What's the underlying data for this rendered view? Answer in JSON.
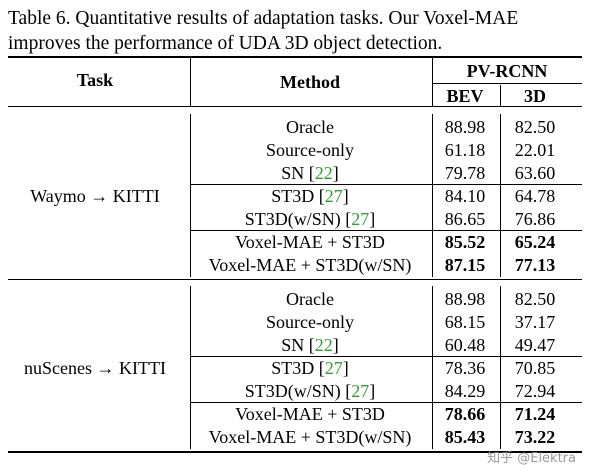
{
  "caption": {
    "line1": "Table 6. Quantitative results of adaptation tasks. Our Voxel-MAE",
    "line2": "improves the performance of UDA 3D object detection."
  },
  "header": {
    "task": "Task",
    "method": "Method",
    "group": "PV-RCNN",
    "bev": "BEV",
    "threed": "3D"
  },
  "groups": [
    {
      "task_src": "Waymo",
      "task_arrow": "→",
      "task_dst": "KITTI",
      "rows": [
        {
          "method": "Oracle",
          "cite": "",
          "suffix": "",
          "bev": "88.98",
          "threed": "82.50",
          "bold": false
        },
        {
          "method": "Source-only",
          "cite": "",
          "suffix": "",
          "bev": "61.18",
          "threed": "22.01",
          "bold": false
        },
        {
          "method": "SN [",
          "cite": "22",
          "suffix": "]",
          "bev": "79.78",
          "threed": "63.60",
          "bold": false
        },
        {
          "method": "ST3D [",
          "cite": "27",
          "suffix": "]",
          "bev": "84.10",
          "threed": "64.78",
          "bold": false
        },
        {
          "method": "ST3D(w/SN) [",
          "cite": "27",
          "suffix": "]",
          "bev": "86.65",
          "threed": "76.86",
          "bold": false
        },
        {
          "method": "Voxel-MAE + ST3D",
          "cite": "",
          "suffix": "",
          "bev": "85.52",
          "threed": "65.24",
          "bold": true
        },
        {
          "method": "Voxel-MAE + ST3D(w/SN)",
          "cite": "",
          "suffix": "",
          "bev": "87.15",
          "threed": "77.13",
          "bold": true
        }
      ]
    },
    {
      "task_src": "nuScenes",
      "task_arrow": "→",
      "task_dst": "KITTI",
      "rows": [
        {
          "method": "Oracle",
          "cite": "",
          "suffix": "",
          "bev": "88.98",
          "threed": "82.50",
          "bold": false
        },
        {
          "method": "Source-only",
          "cite": "",
          "suffix": "",
          "bev": "68.15",
          "threed": "37.17",
          "bold": false
        },
        {
          "method": "SN [",
          "cite": "22",
          "suffix": "]",
          "bev": "60.48",
          "threed": "49.47",
          "bold": false
        },
        {
          "method": "ST3D [",
          "cite": "27",
          "suffix": "]",
          "bev": "78.36",
          "threed": "70.85",
          "bold": false
        },
        {
          "method": "ST3D(w/SN) [",
          "cite": "27",
          "suffix": "]",
          "bev": "84.29",
          "threed": "72.94",
          "bold": false
        },
        {
          "method": "Voxel-MAE + ST3D",
          "cite": "",
          "suffix": "",
          "bev": "78.66",
          "threed": "71.24",
          "bold": true
        },
        {
          "method": "Voxel-MAE + ST3D(w/SN)",
          "cite": "",
          "suffix": "",
          "bev": "85.43",
          "threed": "73.22",
          "bold": true
        }
      ]
    }
  ],
  "watermark": "知乎 @Elektra",
  "colors": {
    "cite": "#2ca02c",
    "rule": "#000000"
  }
}
